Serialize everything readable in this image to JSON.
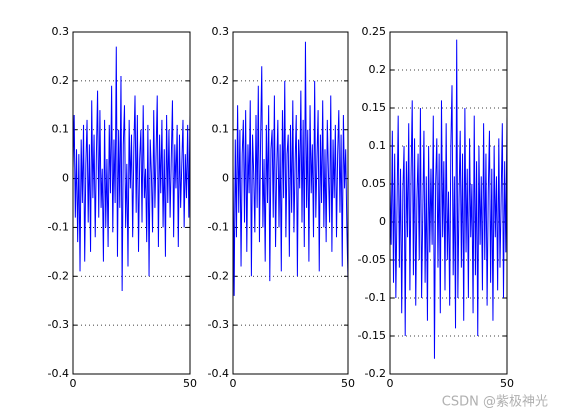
{
  "chart_data": [
    {
      "type": "line",
      "grid": true,
      "xlim": [
        0,
        50
      ],
      "xticks": [
        0,
        50
      ],
      "ylim": [
        -0.4,
        0.3
      ],
      "yticks": [
        -0.4,
        -0.3,
        -0.2,
        -0.1,
        0,
        0.1,
        0.2,
        0.3
      ],
      "x": [
        0,
        0.5,
        1,
        1.5,
        2,
        2.5,
        3,
        3.5,
        4,
        4.5,
        5,
        5.5,
        6,
        6.5,
        7,
        7.5,
        8,
        8.5,
        9,
        9.5,
        10,
        10.5,
        11,
        11.5,
        12,
        12.5,
        13,
        13.5,
        14,
        14.5,
        15,
        15.5,
        16,
        16.5,
        17,
        17.5,
        18,
        18.5,
        19,
        19.5,
        20,
        20.5,
        21,
        21.5,
        22,
        22.5,
        23,
        23.5,
        24,
        24.5,
        25,
        25.5,
        26,
        26.5,
        27,
        27.5,
        28,
        28.5,
        29,
        29.5,
        30,
        30.5,
        31,
        31.5,
        32,
        32.5,
        33,
        33.5,
        34,
        34.5,
        35,
        35.5,
        36,
        36.5,
        37,
        37.5,
        38,
        38.5,
        39,
        39.5,
        40,
        40.5,
        41,
        41.5,
        42,
        42.5,
        43,
        43.5,
        44,
        44.5,
        45,
        45.5,
        46,
        46.5,
        47,
        47.5,
        48,
        48.5,
        49,
        49.5,
        50
      ],
      "series": [
        {
          "color": "#0000ff",
          "values": [
            0.02,
            0.13,
            -0.08,
            0.06,
            -0.13,
            0.05,
            -0.19,
            0.08,
            -0.05,
            0.11,
            -0.17,
            0.03,
            0.12,
            -0.09,
            0.07,
            -0.15,
            0.16,
            -0.04,
            0.09,
            -0.12,
            0.05,
            0.18,
            -0.08,
            0.14,
            -0.06,
            0.02,
            -0.17,
            0.12,
            -0.1,
            0.04,
            -0.14,
            0.11,
            -0.03,
            0.19,
            -0.11,
            0.08,
            -0.05,
            0.27,
            -0.16,
            0.1,
            -0.06,
            0.21,
            -0.23,
            0.07,
            0.15,
            -0.1,
            0.03,
            -0.18,
            0.12,
            -0.02,
            0.09,
            -0.12,
            0.06,
            0.17,
            -0.07,
            0.13,
            -0.15,
            0.04,
            0.1,
            -0.09,
            0.15,
            -0.04,
            0.02,
            -0.13,
            0.11,
            -0.2,
            0.08,
            0.01,
            -0.11,
            0.14,
            -0.06,
            0.05,
            0.17,
            -0.14,
            0.09,
            -0.03,
            0.12,
            -0.1,
            0.06,
            -0.16,
            0.13,
            -0.05,
            0.1,
            -0.08,
            0.04,
            0.16,
            -0.12,
            0.07,
            -0.02,
            0.11,
            -0.14,
            0.09,
            -0.06,
            0.03,
            0.12,
            -0.1,
            0.05,
            -0.04,
            0.11,
            -0.08,
            0.13
          ]
        }
      ]
    },
    {
      "type": "line",
      "grid": true,
      "xlim": [
        0,
        50
      ],
      "xticks": [
        0,
        50
      ],
      "ylim": [
        -0.4,
        0.3
      ],
      "yticks": [
        -0.4,
        -0.3,
        -0.2,
        -0.1,
        0,
        0.1,
        0.2,
        0.3
      ],
      "x": [
        0,
        0.5,
        1,
        1.5,
        2,
        2.5,
        3,
        3.5,
        4,
        4.5,
        5,
        5.5,
        6,
        6.5,
        7,
        7.5,
        8,
        8.5,
        9,
        9.5,
        10,
        10.5,
        11,
        11.5,
        12,
        12.5,
        13,
        13.5,
        14,
        14.5,
        15,
        15.5,
        16,
        16.5,
        17,
        17.5,
        18,
        18.5,
        19,
        19.5,
        20,
        20.5,
        21,
        21.5,
        22,
        22.5,
        23,
        23.5,
        24,
        24.5,
        25,
        25.5,
        26,
        26.5,
        27,
        27.5,
        28,
        28.5,
        29,
        29.5,
        30,
        30.5,
        31,
        31.5,
        32,
        32.5,
        33,
        33.5,
        34,
        34.5,
        35,
        35.5,
        36,
        36.5,
        37,
        37.5,
        38,
        38.5,
        39,
        39.5,
        40,
        40.5,
        41,
        41.5,
        42,
        42.5,
        43,
        43.5,
        44,
        44.5,
        45,
        45.5,
        46,
        46.5,
        47,
        47.5,
        48,
        48.5,
        49,
        49.5,
        50
      ],
      "series": [
        {
          "color": "#0000ff",
          "values": [
            0.03,
            -0.24,
            0.08,
            -0.12,
            0.15,
            -0.07,
            0.1,
            -0.18,
            0.05,
            0.12,
            -0.09,
            0.14,
            -0.15,
            0.07,
            -0.03,
            0.16,
            -0.2,
            0.09,
            0.01,
            -0.11,
            0.13,
            -0.06,
            0.19,
            -0.13,
            0.08,
            0.23,
            -0.1,
            0.04,
            -0.17,
            0.11,
            -0.05,
            0.15,
            -0.21,
            0.06,
            0.1,
            -0.08,
            0.17,
            -0.14,
            0.02,
            0.12,
            -0.1,
            0.07,
            -0.19,
            0.14,
            -0.04,
            0.2,
            -0.12,
            0.05,
            0.09,
            -0.16,
            0.11,
            -0.07,
            0.16,
            -0.11,
            0.03,
            0.13,
            -0.2,
            0.08,
            -0.02,
            0.18,
            -0.09,
            0.12,
            -0.14,
            0.28,
            -0.06,
            0.1,
            -0.17,
            0.15,
            -0.03,
            0.07,
            -0.12,
            0.2,
            -0.08,
            0.04,
            0.14,
            -0.19,
            0.09,
            -0.05,
            0.16,
            -0.1,
            0.06,
            -0.13,
            0.12,
            0.01,
            -0.09,
            0.17,
            -0.15,
            0.08,
            -0.04,
            0.11,
            -0.12,
            0.05,
            0.14,
            -0.07,
            0.09,
            -0.18,
            0.13,
            -0.02,
            0.06,
            -0.1,
            -0.21
          ]
        }
      ]
    },
    {
      "type": "line",
      "grid": true,
      "xlim": [
        0,
        50
      ],
      "xticks": [
        0,
        50
      ],
      "ylim": [
        -0.2,
        0.25
      ],
      "yticks": [
        -0.2,
        -0.15,
        -0.1,
        -0.05,
        0,
        0.05,
        0.1,
        0.15,
        0.2,
        0.25
      ],
      "x": [
        0,
        0.5,
        1,
        1.5,
        2,
        2.5,
        3,
        3.5,
        4,
        4.5,
        5,
        5.5,
        6,
        6.5,
        7,
        7.5,
        8,
        8.5,
        9,
        9.5,
        10,
        10.5,
        11,
        11.5,
        12,
        12.5,
        13,
        13.5,
        14,
        14.5,
        15,
        15.5,
        16,
        16.5,
        17,
        17.5,
        18,
        18.5,
        19,
        19.5,
        20,
        20.5,
        21,
        21.5,
        22,
        22.5,
        23,
        23.5,
        24,
        24.5,
        25,
        25.5,
        26,
        26.5,
        27,
        27.5,
        28,
        28.5,
        29,
        29.5,
        30,
        30.5,
        31,
        31.5,
        32,
        32.5,
        33,
        33.5,
        34,
        34.5,
        35,
        35.5,
        36,
        36.5,
        37,
        37.5,
        38,
        38.5,
        39,
        39.5,
        40,
        40.5,
        41,
        41.5,
        42,
        42.5,
        43,
        43.5,
        44,
        44.5,
        45,
        45.5,
        46,
        46.5,
        47,
        47.5,
        48,
        48.5,
        49,
        49.5,
        50
      ],
      "series": [
        {
          "color": "#0000ff",
          "values": [
            0.05,
            -0.03,
            0.12,
            -0.08,
            0.09,
            -0.1,
            0.02,
            0.14,
            -0.06,
            0.07,
            -0.12,
            0.04,
            0.1,
            -0.15,
            0.08,
            -0.02,
            0.13,
            -0.09,
            0.06,
            0.16,
            -0.07,
            0.11,
            -0.11,
            0.03,
            0.09,
            -0.05,
            0.15,
            -0.1,
            0.01,
            0.12,
            -0.08,
            0.06,
            -0.13,
            0.1,
            -0.04,
            0.07,
            -0.03,
            0.14,
            -0.18,
            0.05,
            0.11,
            -0.06,
            0.09,
            -0.12,
            0.16,
            -0.02,
            0.08,
            -0.09,
            0.13,
            -0.05,
            0.04,
            -0.11,
            0.1,
            0.18,
            -0.07,
            0.06,
            -0.14,
            0.24,
            -0.1,
            0.03,
            0.12,
            -0.06,
            0.09,
            -0.13,
            0.15,
            -0.04,
            0.07,
            -0.1,
            0.11,
            -0.02,
            0.05,
            -0.12,
            0.14,
            -0.07,
            0.08,
            -0.15,
            0.1,
            -0.03,
            0.06,
            -0.09,
            0.13,
            -0.05,
            0.09,
            -0.11,
            0.04,
            0.12,
            -0.08,
            0.07,
            -0.13,
            0.1,
            -0.02,
            0.06,
            -0.09,
            0.11,
            -0.06,
            0.03,
            0.13,
            -0.1,
            0.08,
            -0.04,
            0.14
          ]
        }
      ]
    }
  ],
  "watermark": "CSDN @紫极神光"
}
